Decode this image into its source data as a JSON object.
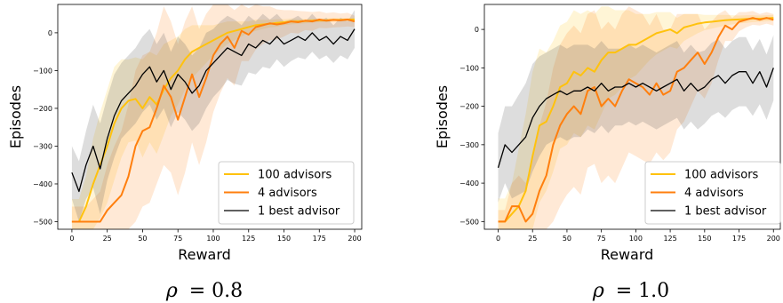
{
  "chart_data": [
    {
      "type": "line",
      "caption_symbol": "ρ",
      "caption_value": "= 0.8",
      "xlabel": "Reward",
      "ylabel": "Episodes",
      "xlim": [
        -10,
        205
      ],
      "ylim": [
        -520,
        75
      ],
      "xticks": [
        0,
        25,
        50,
        75,
        100,
        125,
        150,
        175,
        200
      ],
      "yticks": [
        0,
        -100,
        -200,
        -300,
        -400,
        -500
      ],
      "ytick_labels": [
        "0",
        "−100",
        "−200",
        "−300",
        "−400",
        "−500"
      ],
      "legend_position": "lower-right",
      "x": [
        0,
        5,
        10,
        15,
        20,
        25,
        30,
        35,
        40,
        45,
        50,
        55,
        60,
        65,
        70,
        75,
        80,
        85,
        90,
        95,
        100,
        105,
        110,
        115,
        120,
        125,
        130,
        135,
        140,
        145,
        150,
        155,
        160,
        165,
        170,
        175,
        180,
        185,
        190,
        195,
        200
      ],
      "series": [
        {
          "name": "100 advisors",
          "color": "#FFC20E",
          "values": [
            -500,
            -500,
            -460,
            -400,
            -350,
            -300,
            -240,
            -200,
            -180,
            -175,
            -200,
            -170,
            -190,
            -150,
            -120,
            -100,
            -70,
            -50,
            -40,
            -30,
            -20,
            -10,
            0,
            5,
            10,
            15,
            20,
            22,
            24,
            26,
            28,
            30,
            30,
            31,
            32,
            33,
            33,
            34,
            34,
            35,
            35
          ],
          "band": [
            60,
            60,
            80,
            120,
            140,
            150,
            150,
            130,
            110,
            110,
            130,
            120,
            130,
            120,
            100,
            90,
            80,
            70,
            60,
            50,
            40,
            35,
            30,
            25,
            20,
            15,
            15,
            12,
            10,
            10,
            8,
            8,
            6,
            6,
            5,
            5,
            5,
            5,
            4,
            4,
            4
          ]
        },
        {
          "name": "4 advisors",
          "color": "#FF7F0E",
          "values": [
            -500,
            -500,
            -500,
            -500,
            -500,
            -470,
            -450,
            -430,
            -380,
            -300,
            -260,
            -250,
            -200,
            -140,
            -170,
            -230,
            -170,
            -110,
            -170,
            -120,
            -60,
            -30,
            -10,
            -40,
            5,
            -5,
            15,
            20,
            25,
            22,
            25,
            30,
            28,
            32,
            30,
            35,
            32,
            34,
            33,
            35,
            30
          ],
          "band": [
            40,
            40,
            40,
            60,
            80,
            120,
            150,
            170,
            190,
            200,
            200,
            200,
            200,
            210,
            200,
            200,
            200,
            180,
            180,
            170,
            150,
            130,
            110,
            100,
            80,
            70,
            60,
            50,
            45,
            40,
            35,
            30,
            30,
            25,
            25,
            22,
            20,
            20,
            18,
            18,
            15
          ]
        },
        {
          "name": "1 best advisor",
          "color": "#000000",
          "values": [
            -370,
            -420,
            -350,
            -300,
            -360,
            -280,
            -220,
            -180,
            -160,
            -140,
            -110,
            -90,
            -130,
            -100,
            -150,
            -110,
            -130,
            -160,
            -140,
            -100,
            -80,
            -60,
            -40,
            -50,
            -60,
            -30,
            -40,
            -20,
            -30,
            -10,
            -30,
            -20,
            -10,
            -20,
            0,
            -20,
            -10,
            -30,
            -10,
            -20,
            10
          ],
          "band": [
            70,
            80,
            90,
            110,
            120,
            110,
            110,
            100,
            100,
            100,
            100,
            100,
            100,
            100,
            100,
            100,
            100,
            100,
            100,
            100,
            90,
            90,
            85,
            85,
            80,
            75,
            70,
            70,
            65,
            60,
            60,
            55,
            55,
            50,
            50,
            50,
            50,
            50,
            50,
            50,
            50
          ]
        }
      ]
    },
    {
      "type": "line",
      "caption_symbol": "ρ",
      "caption_value": "= 1.0",
      "xlabel": "Reward",
      "ylabel": "Episodes",
      "xlim": [
        -10,
        205
      ],
      "ylim": [
        -520,
        65
      ],
      "xticks": [
        0,
        25,
        50,
        75,
        100,
        125,
        150,
        175,
        200
      ],
      "yticks": [
        0,
        -100,
        -200,
        -300,
        -400,
        -500
      ],
      "ytick_labels": [
        "0",
        "−100",
        "−200",
        "−300",
        "−400",
        "−500"
      ],
      "legend_position": "lower-right",
      "x": [
        0,
        5,
        10,
        15,
        20,
        25,
        30,
        35,
        40,
        45,
        50,
        55,
        60,
        65,
        70,
        75,
        80,
        85,
        90,
        95,
        100,
        105,
        110,
        115,
        120,
        125,
        130,
        135,
        140,
        145,
        150,
        155,
        160,
        165,
        170,
        175,
        180,
        185,
        190,
        195,
        200
      ],
      "series": [
        {
          "name": "100 advisors",
          "color": "#FFC20E",
          "values": [
            -500,
            -500,
            -480,
            -460,
            -420,
            -330,
            -250,
            -240,
            -200,
            -150,
            -140,
            -110,
            -120,
            -100,
            -110,
            -80,
            -60,
            -60,
            -50,
            -40,
            -40,
            -30,
            -20,
            -10,
            -5,
            0,
            -10,
            5,
            10,
            15,
            18,
            20,
            22,
            24,
            25,
            26,
            27,
            28,
            28,
            29,
            30
          ],
          "band": [
            60,
            60,
            80,
            150,
            200,
            220,
            200,
            180,
            170,
            160,
            160,
            160,
            160,
            150,
            150,
            140,
            120,
            110,
            100,
            90,
            80,
            70,
            60,
            55,
            50,
            45,
            40,
            35,
            30,
            25,
            20,
            18,
            16,
            14,
            12,
            10,
            10,
            9,
            8,
            8,
            8
          ]
        },
        {
          "name": "4 advisors",
          "color": "#FF7F0E",
          "values": [
            -500,
            -500,
            -460,
            -460,
            -500,
            -480,
            -420,
            -380,
            -300,
            -250,
            -220,
            -200,
            -220,
            -160,
            -150,
            -200,
            -180,
            -200,
            -160,
            -130,
            -140,
            -150,
            -170,
            -140,
            -170,
            -160,
            -110,
            -100,
            -80,
            -60,
            -90,
            -60,
            -20,
            10,
            0,
            20,
            25,
            30,
            25,
            30,
            25
          ],
          "band": [
            30,
            30,
            60,
            80,
            100,
            140,
            170,
            190,
            200,
            210,
            210,
            210,
            210,
            200,
            200,
            200,
            200,
            200,
            200,
            190,
            190,
            190,
            180,
            180,
            170,
            160,
            150,
            140,
            120,
            100,
            90,
            80,
            60,
            40,
            30,
            25,
            20,
            18,
            15,
            15,
            15
          ]
        },
        {
          "name": "1 best advisor",
          "color": "#000000",
          "values": [
            -360,
            -300,
            -320,
            -300,
            -280,
            -230,
            -200,
            -180,
            -170,
            -160,
            -170,
            -160,
            -160,
            -150,
            -160,
            -140,
            -160,
            -150,
            -150,
            -140,
            -150,
            -140,
            -150,
            -160,
            -150,
            -140,
            -130,
            -160,
            -140,
            -160,
            -150,
            -130,
            -120,
            -140,
            -120,
            -110,
            -110,
            -140,
            -110,
            -150,
            -100
          ],
          "band": [
            90,
            100,
            120,
            130,
            140,
            140,
            130,
            120,
            120,
            120,
            120,
            120,
            120,
            110,
            110,
            110,
            110,
            100,
            100,
            100,
            100,
            100,
            100,
            100,
            100,
            100,
            100,
            100,
            100,
            100,
            95,
            95,
            95,
            90,
            90,
            90,
            90,
            85,
            85,
            85,
            85
          ]
        }
      ]
    }
  ]
}
